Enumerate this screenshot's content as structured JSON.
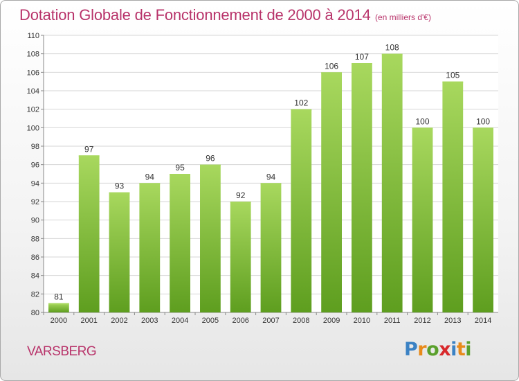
{
  "header": {
    "title": "Dotation Globale de Fonctionnement de 2000 à 2014",
    "subtitle": "(en milliers d'€)"
  },
  "footer": {
    "commune": "VARSBERG",
    "logo": [
      "P",
      "r",
      "o",
      "x",
      "i",
      "t",
      "i"
    ],
    "logo_colors": [
      "#3b82c4",
      "#e88a1a",
      "#5aa02c",
      "#d8282b",
      "#3b82c4",
      "#e88a1a",
      "#5aa02c"
    ]
  },
  "chart_data": {
    "type": "bar",
    "categories": [
      "2000",
      "2001",
      "2002",
      "2003",
      "2004",
      "2005",
      "2006",
      "2007",
      "2008",
      "2009",
      "2010",
      "2011",
      "2012",
      "2013",
      "2014"
    ],
    "values": [
      81,
      97,
      93,
      94,
      95,
      96,
      92,
      94,
      102,
      106,
      107,
      108,
      100,
      105,
      100
    ],
    "title": "Dotation Globale de Fonctionnement de 2000 à 2014",
    "xlabel": "",
    "ylabel": "",
    "ylim": [
      80,
      110
    ],
    "yticks": [
      80,
      82,
      84,
      86,
      88,
      90,
      92,
      94,
      96,
      98,
      100,
      102,
      104,
      106,
      108,
      110
    ],
    "grid": true,
    "bar_color": "#7cc13a",
    "bar_color_light": "#a8d85e",
    "bar_color_dark": "#5e9e1f"
  }
}
